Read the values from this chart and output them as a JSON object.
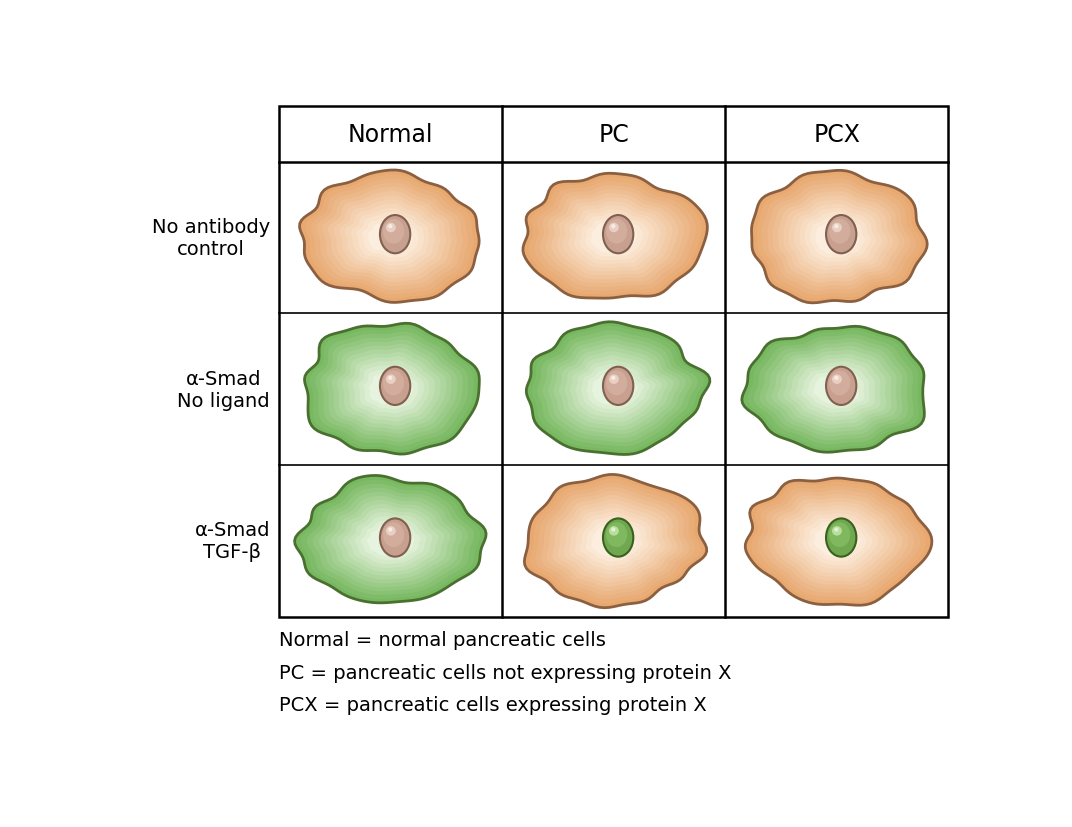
{
  "col_headers": [
    "Normal",
    "PC",
    "PCX"
  ],
  "row_labels": [
    "No antibody\ncontrol",
    "α-Smad\nNo ligand",
    "α-Smad\nTGF-β"
  ],
  "legend_lines": [
    "Normal = normal pancreatic cells",
    "PC = pancreatic cells not expressing protein X",
    "PCX = pancreatic cells expressing protein X"
  ],
  "cells": [
    [
      {
        "cytosol": "orange",
        "nucleus": "pink"
      },
      {
        "cytosol": "orange",
        "nucleus": "pink"
      },
      {
        "cytosol": "orange",
        "nucleus": "pink"
      }
    ],
    [
      {
        "cytosol": "green",
        "nucleus": "pink"
      },
      {
        "cytosol": "green",
        "nucleus": "pink"
      },
      {
        "cytosol": "green",
        "nucleus": "pink"
      }
    ],
    [
      {
        "cytosol": "green",
        "nucleus": "pink"
      },
      {
        "cytosol": "orange",
        "nucleus": "green"
      },
      {
        "cytosol": "orange",
        "nucleus": "green"
      }
    ]
  ],
  "cytosol_orange_outer": "#E8A870",
  "cytosol_orange_inner": "#FDF0E0",
  "cytosol_orange_edge": "#8B6040",
  "cytosol_green_outer": "#78B860",
  "cytosol_green_inner": "#E8F5E0",
  "cytosol_green_edge": "#4A7030",
  "nucleus_pink_base": "#C8A090",
  "nucleus_pink_mid": "#DDB8A8",
  "nucleus_pink_highlight": "#F0D8CC",
  "nucleus_green_base": "#70A850",
  "nucleus_green_mid": "#90C870",
  "nucleus_green_highlight": "#C8E8A8",
  "nucleus_edge_pink": "#806050",
  "nucleus_edge_green": "#3A6020",
  "background_color": "#FFFFFF",
  "text_color": "#000000",
  "header_fontsize": 17,
  "label_fontsize": 14,
  "legend_fontsize": 14
}
